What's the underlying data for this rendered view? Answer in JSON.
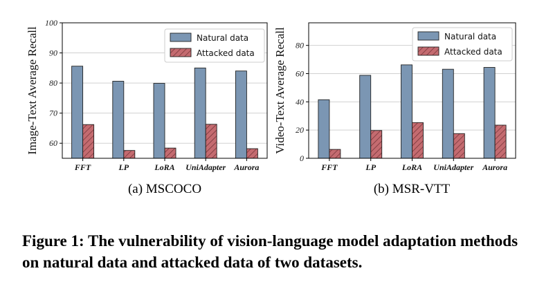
{
  "chart_data": [
    {
      "type": "bar",
      "title": "",
      "subtitle": "(a) MSCOCO",
      "xlabel": "",
      "ylabel": "Image-Text Average Recall",
      "categories": [
        "FFT",
        "LP",
        "LoRA",
        "UniAdapter",
        "Aurora"
      ],
      "series": [
        {
          "name": "Natural data",
          "values": [
            85.6,
            80.6,
            79.9,
            85.0,
            84.0
          ],
          "color": "#7b96b3",
          "pattern": "solid"
        },
        {
          "name": "Attacked data",
          "values": [
            66.2,
            57.6,
            58.4,
            66.3,
            58.2
          ],
          "color": "#c46b70",
          "pattern": "hatch"
        }
      ],
      "ylim": [
        55,
        100
      ],
      "yticks": [
        60,
        70,
        80,
        90,
        100
      ],
      "grid": "horizontal",
      "legend": "top-right"
    },
    {
      "type": "bar",
      "title": "",
      "subtitle": "(b) MSR-VTT",
      "xlabel": "",
      "ylabel": "Video-Text Average Recall",
      "categories": [
        "FFT",
        "LP",
        "LoRA",
        "UniAdapter",
        "Aurora"
      ],
      "series": [
        {
          "name": "Natural data",
          "values": [
            41.5,
            58.8,
            66.2,
            63.1,
            64.4
          ],
          "color": "#7b96b3",
          "pattern": "solid"
        },
        {
          "name": "Attacked data",
          "values": [
            6.3,
            19.7,
            25.3,
            17.5,
            23.5
          ],
          "color": "#c46b70",
          "pattern": "hatch"
        }
      ],
      "ylim": [
        0,
        96
      ],
      "yticks": [
        0,
        20,
        40,
        60,
        80
      ],
      "grid": "horizontal",
      "legend": "top-right"
    }
  ],
  "caption": "Figure 1: The vulnerability of vision-language model adaptation methods on natural data and attacked data of two datasets."
}
